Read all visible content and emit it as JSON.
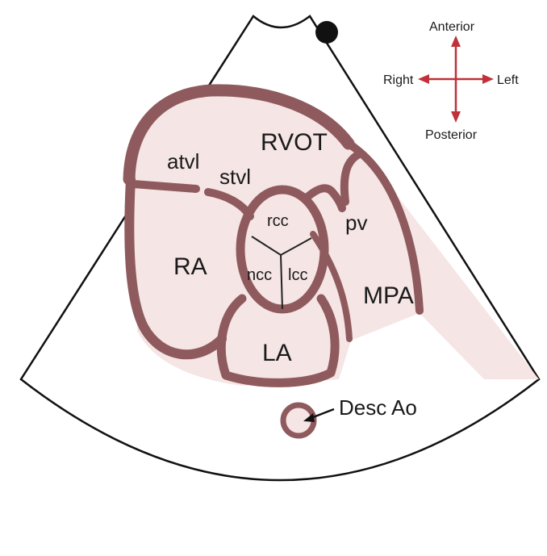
{
  "labels": {
    "rvot": "RVOT",
    "atvl": "atvl",
    "stvl": "stvl",
    "rcc": "rcc",
    "ncc": "ncc",
    "lcc": "lcc",
    "pv": "pv",
    "ra": "RA",
    "mpa": "MPA",
    "la": "LA",
    "desc_ao": "Desc Ao"
  },
  "compass": {
    "anterior": "Anterior",
    "posterior": "Posterior",
    "right": "Right",
    "left": "Left"
  },
  "colors": {
    "wall": "#8f5a5d",
    "chamber": "#f5e5e4",
    "compass_arrow": "#c0313a",
    "sector_outline": "#111111"
  }
}
